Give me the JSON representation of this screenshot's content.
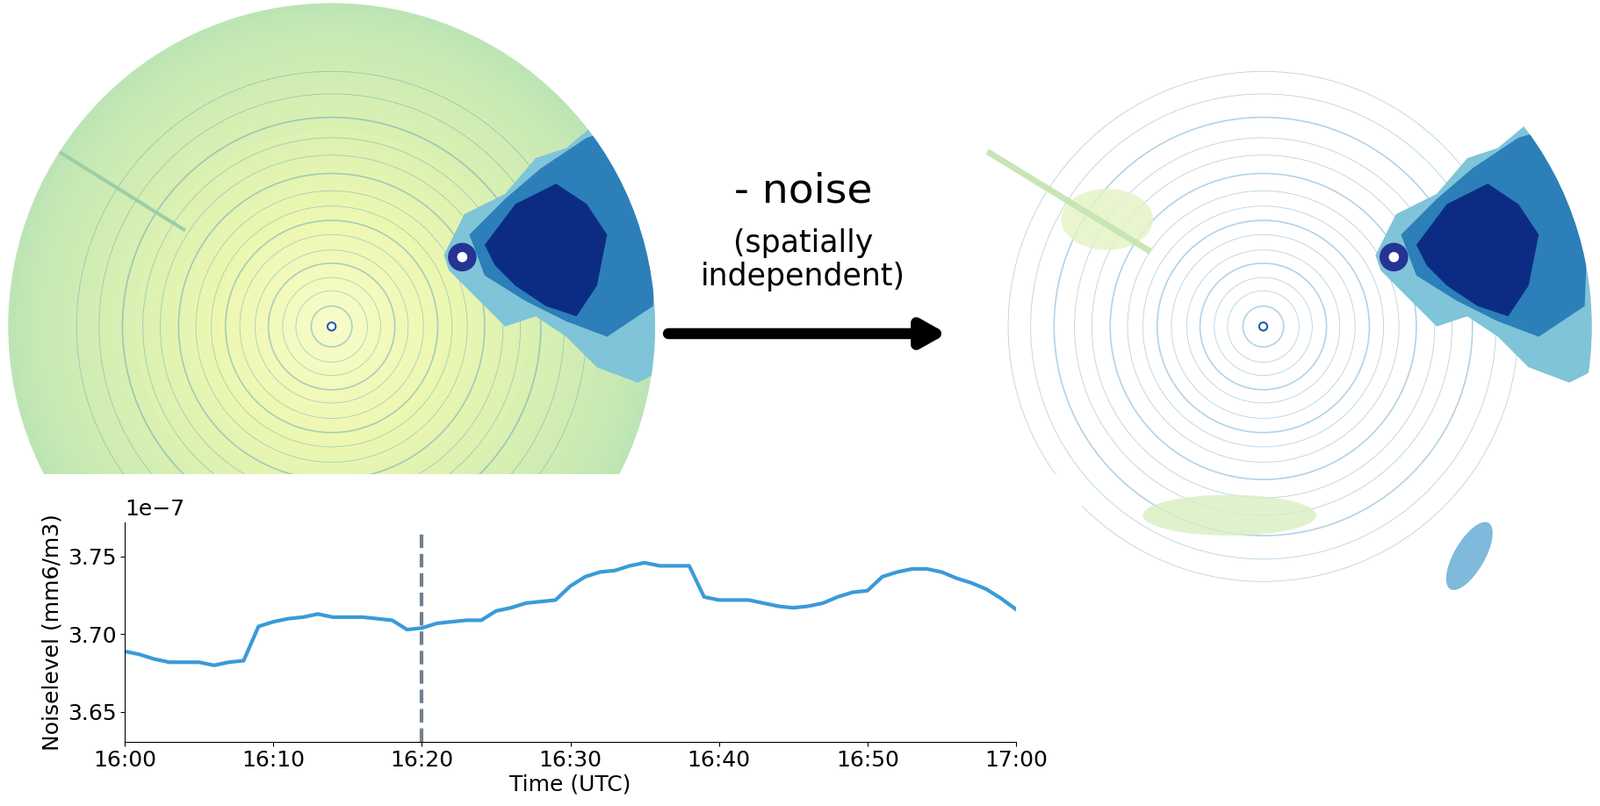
{
  "diagram": {
    "operation": "- noise",
    "note": "(spatially\nindependent)"
  },
  "chart_data": {
    "type": "line",
    "x": [
      0,
      1,
      2,
      3,
      4,
      5,
      6,
      7,
      8,
      9,
      10,
      11,
      12,
      13,
      14,
      15,
      16,
      17,
      18,
      19,
      20,
      21,
      22,
      23,
      24,
      25,
      26,
      27,
      28,
      29,
      30,
      31,
      32,
      33,
      34,
      35,
      36,
      37,
      38,
      39,
      40,
      41,
      42,
      43,
      44,
      45,
      46,
      47,
      48,
      49,
      50,
      51,
      52,
      53,
      54,
      55,
      56,
      57,
      58,
      59,
      60
    ],
    "values": [
      3.689e-07,
      3.687e-07,
      3.684e-07,
      3.682e-07,
      3.682e-07,
      3.682e-07,
      3.68e-07,
      3.682e-07,
      3.683e-07,
      3.705e-07,
      3.708e-07,
      3.71e-07,
      3.711e-07,
      3.713e-07,
      3.711e-07,
      3.711e-07,
      3.711e-07,
      3.71e-07,
      3.709e-07,
      3.703e-07,
      3.704e-07,
      3.707e-07,
      3.708e-07,
      3.709e-07,
      3.709e-07,
      3.715e-07,
      3.717e-07,
      3.72e-07,
      3.721e-07,
      3.722e-07,
      3.731e-07,
      3.737e-07,
      3.74e-07,
      3.741e-07,
      3.744e-07,
      3.746e-07,
      3.744e-07,
      3.744e-07,
      3.744e-07,
      3.724e-07,
      3.722e-07,
      3.722e-07,
      3.722e-07,
      3.72e-07,
      3.718e-07,
      3.717e-07,
      3.718e-07,
      3.72e-07,
      3.724e-07,
      3.727e-07,
      3.728e-07,
      3.737e-07,
      3.74e-07,
      3.742e-07,
      3.742e-07,
      3.74e-07,
      3.736e-07,
      3.733e-07,
      3.729e-07,
      3.723e-07,
      3.716e-07
    ],
    "color": "#3a9ad9",
    "line_style": "solid",
    "xlabel": "Time (UTC)",
    "ylabel": "Noiselevel (mm6/m3)",
    "y_offset_label": "1e−7",
    "xlim": [
      0,
      60
    ],
    "xticks": [
      {
        "value": 0,
        "label": "16:00"
      },
      {
        "value": 10,
        "label": "16:10"
      },
      {
        "value": 20,
        "label": "16:20"
      },
      {
        "value": 30,
        "label": "16:30"
      },
      {
        "value": 40,
        "label": "16:40"
      },
      {
        "value": 50,
        "label": "16:50"
      },
      {
        "value": 60,
        "label": "17:00"
      }
    ],
    "ylim": [
      3.631e-07,
      3.772e-07
    ],
    "yticks": [
      {
        "value": 3.65e-07,
        "label": "3.65"
      },
      {
        "value": 3.7e-07,
        "label": "3.70"
      },
      {
        "value": 3.75e-07,
        "label": "3.75"
      }
    ],
    "vline": {
      "x": 20,
      "color": "#708090",
      "line_style": "dashed"
    },
    "grid": false
  }
}
